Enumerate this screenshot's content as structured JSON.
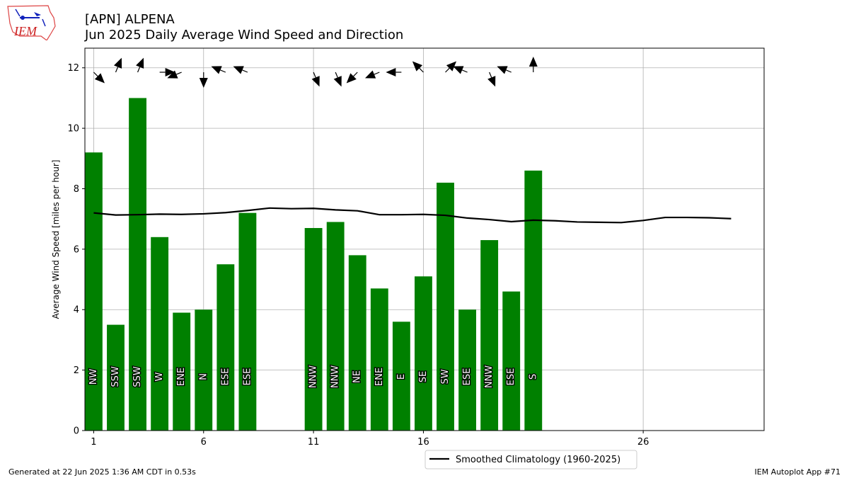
{
  "header": {
    "title": "[APN] ALPENA",
    "subtitle": "Jun 2025 Daily Average Wind Speed and Direction"
  },
  "logo": {
    "text": "IEM"
  },
  "footer": {
    "left": "Generated at 22 Jun 2025 1:36 AM CDT in 0.53s",
    "right": "IEM Autoplot App #71"
  },
  "colors": {
    "bar": "#008000",
    "climatology": "#000000",
    "grid": "#b0b0b0"
  },
  "chart_data": {
    "type": "bar",
    "ylabel": "Average Wind Speed [miles per hour]",
    "xlabel": "",
    "ylim": [
      0,
      12.65
    ],
    "xlim": [
      0.6,
      31.5
    ],
    "xticks": [
      1,
      6,
      11,
      16,
      26
    ],
    "yticks": [
      0,
      2,
      4,
      6,
      8,
      10,
      12
    ],
    "grid": true,
    "legend": {
      "placement": "below-center",
      "entries": [
        "Smoothed Climatology (1960-2025)"
      ]
    },
    "series": [
      {
        "kind": "bar",
        "days": [
          1,
          2,
          3,
          4,
          5,
          6,
          7,
          8,
          11,
          12,
          13,
          14,
          15,
          16,
          17,
          18,
          19,
          20,
          21
        ],
        "values": [
          9.2,
          3.5,
          11.0,
          6.4,
          3.9,
          4.0,
          5.5,
          7.2,
          6.7,
          6.9,
          5.8,
          4.7,
          3.6,
          5.1,
          8.2,
          4.0,
          6.3,
          4.6,
          8.6
        ],
        "directions": [
          "NW",
          "SSW",
          "SSW",
          "W",
          "ENE",
          "N",
          "ESE",
          "ESE",
          "NNW",
          "NNW",
          "NE",
          "ENE",
          "E",
          "SE",
          "SW",
          "ESE",
          "NNW",
          "ESE",
          "S"
        ]
      },
      {
        "kind": "line",
        "name": "Smoothed Climatology (1960-2025)",
        "days": [
          1,
          2,
          3,
          4,
          5,
          6,
          7,
          8,
          9,
          10,
          11,
          12,
          13,
          14,
          15,
          16,
          17,
          18,
          19,
          20,
          21,
          22,
          23,
          24,
          25,
          26,
          27,
          28,
          29,
          30
        ],
        "values": [
          7.2,
          7.13,
          7.14,
          7.16,
          7.15,
          7.17,
          7.21,
          7.28,
          7.36,
          7.34,
          7.35,
          7.3,
          7.27,
          7.14,
          7.14,
          7.15,
          7.12,
          7.03,
          6.98,
          6.91,
          6.96,
          6.94,
          6.9,
          6.89,
          6.88,
          6.95,
          7.05,
          7.05,
          7.04,
          7.01
        ]
      }
    ]
  }
}
